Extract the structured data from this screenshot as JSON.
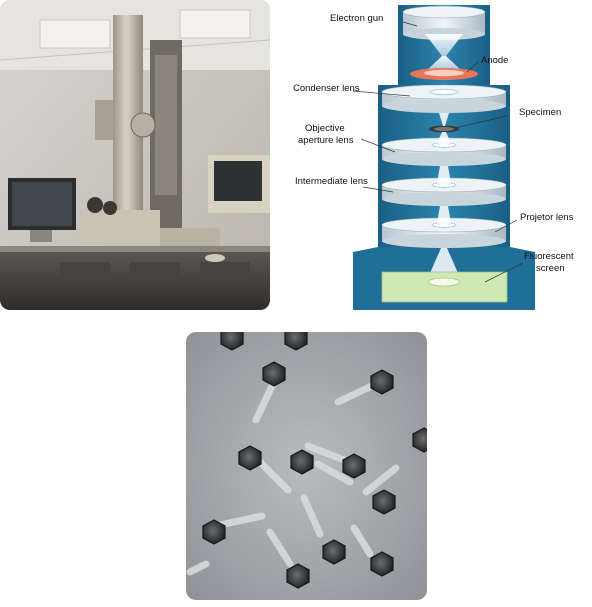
{
  "diagram": {
    "labels": {
      "electron_gun": "Electron gun",
      "anode": "Anode",
      "condenser_lens": "Condenser lens",
      "specimen": "Specimen",
      "objective_line1": "Objective",
      "objective_line2": "aperture lens",
      "intermediate_lens": "Intermediate lens",
      "projector_lens": "Projetor lens",
      "fluorescent_line1": "Fluorescent",
      "fluorescent_line2": "screen"
    }
  },
  "colors": {
    "column_blue": "#1f6f98",
    "column_dark": "#175a7c",
    "lens_face": "#e9eef2",
    "screen_green": "#cfe8b4",
    "anode_orange": "#e8755a"
  },
  "icons": {
    "photo": "electron-microscope-photo",
    "micrograph": "virus-micrograph"
  }
}
